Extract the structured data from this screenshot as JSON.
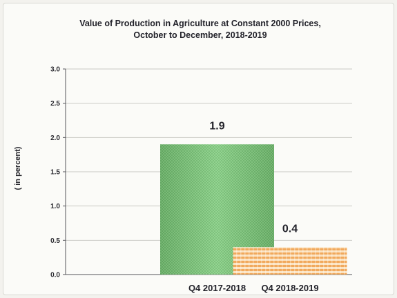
{
  "chart_data": {
    "type": "bar",
    "title_lines": [
      "Value of Production in Agriculture at Constant 2000 Prices,",
      "October to December, 2018-2019"
    ],
    "ylabel": "( in percent)",
    "xlabel": "",
    "categories": [
      "Q4 2017-2018",
      "Q4 2018-2019"
    ],
    "values": [
      1.9,
      0.4
    ],
    "data_labels": [
      "1.9",
      "0.4"
    ],
    "ylim": [
      0,
      3.0
    ],
    "y_ticks": [
      "0.0",
      "0.5",
      "1.0",
      "1.5",
      "2.0",
      "2.5",
      "3.0"
    ],
    "grid": true,
    "legend": "none",
    "colors": {
      "bar1": "#7cc77a",
      "bar1_dark": "#4f9d52",
      "bar2": "#f3b26a",
      "bar2_light": "#fbe3c2",
      "grid": "#c9c9c3",
      "axis": "#55555a"
    }
  }
}
